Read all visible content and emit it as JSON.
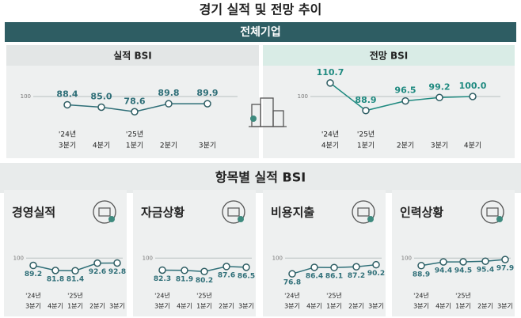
{
  "title": "경기 실적 및 전망 추이",
  "banner": "전체기업",
  "section_title": "항목별 실적 BSI",
  "chart_data": [
    {
      "type": "line",
      "title": "실적 BSI",
      "categories": [
        "3분기",
        "4분기",
        "1분기",
        "2분기",
        "3분기"
      ],
      "year_labels": [
        "'24년",
        null,
        "'25년",
        null,
        null
      ],
      "values": [
        88.4,
        85,
        78.6,
        89.8,
        89.9
      ],
      "value_labels": [
        "88.4",
        "85.0",
        "78.6",
        "89.8",
        "89.9"
      ],
      "ylim": [
        70,
        110
      ],
      "yticks": [
        100
      ],
      "color": "#2f6f78"
    },
    {
      "type": "line",
      "title": "전망 BSI",
      "categories": [
        "4분기",
        "1분기",
        "2분기",
        "3분기",
        "4분기"
      ],
      "year_labels": [
        "'24년",
        "'25년",
        null,
        null,
        null
      ],
      "values": [
        110.7,
        88.9,
        96.5,
        99.2,
        100
      ],
      "value_labels": [
        "110.7",
        "88.9",
        "96.5",
        "99.2",
        "100.0"
      ],
      "ylim": [
        85,
        115
      ],
      "yticks": [
        100
      ],
      "color": "#1f8a80"
    },
    {
      "type": "line",
      "title": "경영실적",
      "categories": [
        "3분기",
        "4분기",
        "1분기",
        "2분기",
        "3분기"
      ],
      "year_labels": [
        "'24년",
        null,
        "'25년",
        null,
        null
      ],
      "values": [
        89.2,
        81.8,
        81.4,
        92.6,
        92.8
      ],
      "ylim": [
        70,
        105
      ],
      "yticks": [
        100
      ],
      "color": "#2f6f78"
    },
    {
      "type": "line",
      "title": "자금상황",
      "categories": [
        "3분기",
        "4분기",
        "1분기",
        "2분기",
        "3분기"
      ],
      "year_labels": [
        "'24년",
        null,
        "'25년",
        null,
        null
      ],
      "values": [
        82.3,
        81.9,
        80.2,
        87.6,
        86.5
      ],
      "ylim": [
        70,
        105
      ],
      "yticks": [
        100
      ],
      "color": "#2f6f78"
    },
    {
      "type": "line",
      "title": "비용지출",
      "categories": [
        "3분기",
        "4분기",
        "1분기",
        "2분기",
        "3분기"
      ],
      "year_labels": [
        "'24년",
        null,
        "'25년",
        null,
        null
      ],
      "values": [
        76.8,
        86.4,
        86.1,
        87.2,
        90.2
      ],
      "ylim": [
        70,
        105
      ],
      "yticks": [
        100
      ],
      "color": "#2f6f78"
    },
    {
      "type": "line",
      "title": "인력상황",
      "categories": [
        "3분기",
        "4분기",
        "1분기",
        "2분기",
        "3분기"
      ],
      "year_labels": [
        "'24년",
        null,
        "'25년",
        null,
        null
      ],
      "values": [
        88.9,
        94.4,
        94.5,
        95.4,
        97.9
      ],
      "ylim": [
        70,
        105
      ],
      "yticks": [
        100
      ],
      "color": "#2f6f78"
    }
  ]
}
